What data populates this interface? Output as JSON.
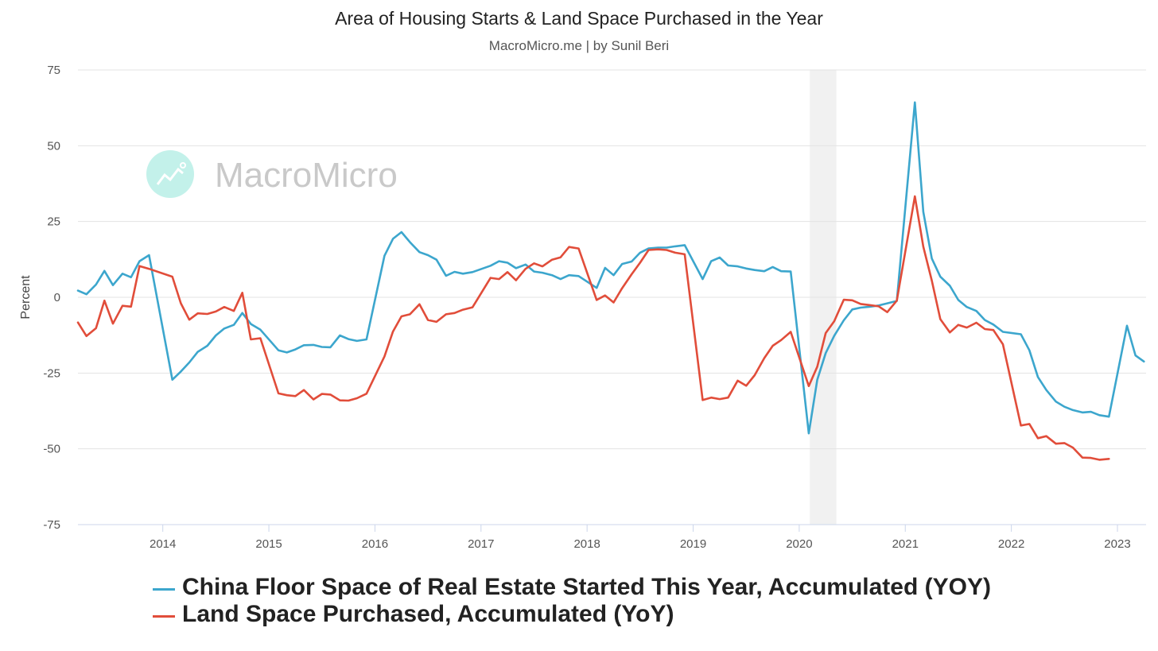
{
  "watermark": "MacroMicro",
  "chart_data": {
    "type": "line",
    "title": "Area of Housing Starts & Land Space Purchased in the Year",
    "subtitle": "MacroMicro.me | by Sunil Beri",
    "ylabel": "Percent",
    "xlabel": "",
    "xlim": [
      2013.2,
      2023.27
    ],
    "ylim": [
      -75,
      75
    ],
    "yticks": [
      75,
      50,
      25,
      0,
      -25,
      -50,
      -75
    ],
    "ytick_labels": [
      "75",
      "50",
      "25",
      "0",
      "-25",
      "-50",
      "-75"
    ],
    "xticks": [
      2014,
      2015,
      2016,
      2017,
      2018,
      2019,
      2020,
      2021,
      2022,
      2023
    ],
    "xtick_labels": [
      "2014",
      "2015",
      "2016",
      "2017",
      "2018",
      "2019",
      "2020",
      "2021",
      "2022",
      "2023"
    ],
    "grid": true,
    "shaded_region": [
      2020.1,
      2020.35
    ],
    "series": [
      {
        "name": "China Floor Space of Real Estate Started This Year, Accumulated (YOY)",
        "color": "#3ca6cd",
        "x": [
          2013.2,
          2013.28,
          2013.37,
          2013.45,
          2013.53,
          2013.62,
          2013.7,
          2013.78,
          2013.87,
          2014.09,
          2014.17,
          2014.25,
          2014.33,
          2014.42,
          2014.5,
          2014.58,
          2014.67,
          2014.75,
          2014.83,
          2014.92,
          2015.09,
          2015.17,
          2015.25,
          2015.33,
          2015.42,
          2015.5,
          2015.58,
          2015.67,
          2015.75,
          2015.83,
          2015.92,
          2016.09,
          2016.17,
          2016.25,
          2016.33,
          2016.42,
          2016.5,
          2016.58,
          2016.67,
          2016.75,
          2016.83,
          2016.92,
          2017.09,
          2017.17,
          2017.25,
          2017.33,
          2017.42,
          2017.5,
          2017.58,
          2017.67,
          2017.75,
          2017.83,
          2017.92,
          2018.09,
          2018.17,
          2018.25,
          2018.33,
          2018.42,
          2018.5,
          2018.58,
          2018.67,
          2018.75,
          2018.83,
          2018.92,
          2019.09,
          2019.17,
          2019.25,
          2019.33,
          2019.42,
          2019.5,
          2019.58,
          2019.67,
          2019.75,
          2019.83,
          2019.92,
          2020.09,
          2020.17,
          2020.25,
          2020.33,
          2020.42,
          2020.5,
          2020.58,
          2020.67,
          2020.75,
          2020.83,
          2020.92,
          2021.09,
          2021.17,
          2021.25,
          2021.33,
          2021.42,
          2021.5,
          2021.58,
          2021.67,
          2021.75,
          2021.83,
          2021.92,
          2022.09,
          2022.17,
          2022.25,
          2022.33,
          2022.42,
          2022.5,
          2022.58,
          2022.67,
          2022.75,
          2022.83,
          2022.92,
          2023.09,
          2023.17,
          2023.25
        ],
        "y": [
          2.2,
          1.0,
          4.2,
          8.7,
          4.0,
          7.8,
          6.6,
          11.9,
          13.9,
          -27.2,
          -24.5,
          -21.5,
          -18.0,
          -16.0,
          -12.6,
          -10.3,
          -9.1,
          -5.2,
          -8.8,
          -10.7,
          -17.5,
          -18.2,
          -17.2,
          -15.8,
          -15.7,
          -16.4,
          -16.5,
          -12.6,
          -13.8,
          -14.4,
          -13.9,
          13.7,
          19.3,
          21.5,
          18.2,
          14.9,
          13.9,
          12.4,
          7.1,
          8.4,
          7.8,
          8.3,
          10.4,
          11.9,
          11.4,
          9.6,
          10.8,
          8.5,
          8.1,
          7.3,
          6.0,
          7.3,
          7.0,
          3.1,
          9.7,
          7.3,
          11.0,
          11.8,
          14.7,
          16.1,
          16.4,
          16.4,
          16.8,
          17.2,
          6.0,
          11.9,
          13.1,
          10.5,
          10.2,
          9.5,
          9.0,
          8.6,
          10.0,
          8.6,
          8.5,
          -44.9,
          -27.2,
          -18.4,
          -12.7,
          -7.6,
          -4.0,
          -3.4,
          -3.1,
          -2.7,
          -2.0,
          -1.2,
          64.3,
          28.2,
          12.8,
          6.8,
          3.8,
          -0.9,
          -3.2,
          -4.5,
          -7.5,
          -9.0,
          -11.4,
          -12.2,
          -17.5,
          -26.3,
          -30.6,
          -34.4,
          -36.1,
          -37.2,
          -38.0,
          -37.8,
          -38.9,
          -39.4,
          -9.4,
          -19.2,
          -21.2
        ]
      },
      {
        "name": "Land Space Purchased, Accumulated (YoY)",
        "color": "#e14d3a",
        "x": [
          2013.2,
          2013.28,
          2013.37,
          2013.45,
          2013.53,
          2013.62,
          2013.7,
          2013.78,
          2013.87,
          2014.09,
          2014.17,
          2014.25,
          2014.33,
          2014.42,
          2014.5,
          2014.58,
          2014.67,
          2014.75,
          2014.83,
          2014.92,
          2015.09,
          2015.17,
          2015.25,
          2015.33,
          2015.42,
          2015.5,
          2015.58,
          2015.67,
          2015.75,
          2015.83,
          2015.92,
          2016.09,
          2016.17,
          2016.25,
          2016.33,
          2016.42,
          2016.5,
          2016.58,
          2016.67,
          2016.75,
          2016.83,
          2016.92,
          2017.09,
          2017.17,
          2017.25,
          2017.33,
          2017.42,
          2017.5,
          2017.58,
          2017.67,
          2017.75,
          2017.83,
          2017.92,
          2018.09,
          2018.17,
          2018.25,
          2018.33,
          2018.42,
          2018.5,
          2018.58,
          2018.67,
          2018.75,
          2018.83,
          2018.92,
          2019.09,
          2019.17,
          2019.25,
          2019.33,
          2019.42,
          2019.5,
          2019.58,
          2019.67,
          2019.75,
          2019.83,
          2019.92,
          2020.09,
          2020.17,
          2020.25,
          2020.33,
          2020.42,
          2020.5,
          2020.58,
          2020.67,
          2020.75,
          2020.83,
          2020.92,
          2021.09,
          2021.17,
          2021.25,
          2021.33,
          2021.42,
          2021.5,
          2021.58,
          2021.67,
          2021.75,
          2021.83,
          2021.92,
          2022.09,
          2022.17,
          2022.25,
          2022.33,
          2022.42,
          2022.5,
          2022.58,
          2022.67,
          2022.75,
          2022.83,
          2022.92
        ],
        "y": [
          -8.3,
          -12.8,
          -10.2,
          -1.1,
          -8.7,
          -2.8,
          -3.1,
          10.3,
          9.4,
          6.8,
          -2.0,
          -7.4,
          -5.3,
          -5.5,
          -4.7,
          -3.2,
          -4.5,
          1.5,
          -13.9,
          -13.5,
          -31.7,
          -32.3,
          -32.6,
          -30.6,
          -33.7,
          -31.9,
          -32.1,
          -34.0,
          -34.1,
          -33.3,
          -31.8,
          -19.5,
          -11.3,
          -6.3,
          -5.6,
          -2.3,
          -7.5,
          -8.1,
          -5.6,
          -5.2,
          -4.1,
          -3.3,
          6.4,
          6.0,
          8.3,
          5.6,
          9.4,
          11.2,
          10.2,
          12.4,
          13.2,
          16.6,
          16.1,
          -0.9,
          0.6,
          -1.7,
          3.0,
          7.6,
          11.4,
          15.6,
          15.8,
          15.6,
          14.7,
          14.2,
          -33.9,
          -33.1,
          -33.6,
          -33.1,
          -27.5,
          -29.2,
          -25.7,
          -20.1,
          -16.0,
          -14.1,
          -11.4,
          -29.3,
          -22.9,
          -11.8,
          -7.9,
          -0.8,
          -1.0,
          -2.2,
          -2.6,
          -3.0,
          -4.9,
          -1.1,
          33.3,
          16.7,
          5.5,
          -7.2,
          -11.6,
          -9.1,
          -10.0,
          -8.4,
          -10.5,
          -10.8,
          -15.5,
          -42.3,
          -41.8,
          -46.5,
          -45.8,
          -48.3,
          -48.1,
          -49.6,
          -52.9,
          -53.0,
          -53.6,
          -53.3
        ]
      }
    ]
  }
}
